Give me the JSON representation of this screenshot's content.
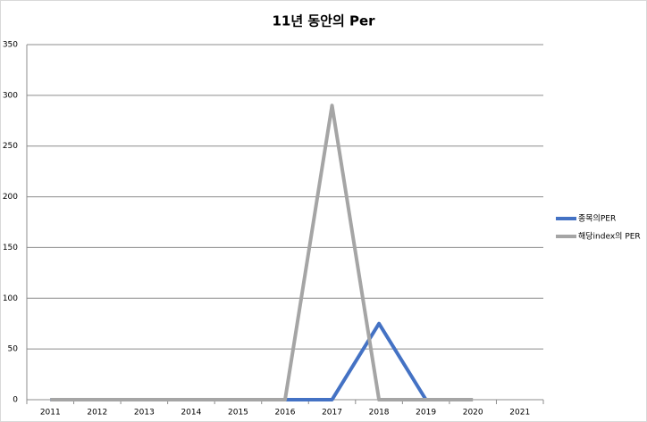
{
  "chart_data": {
    "type": "line",
    "title": "11년 동안의 Per",
    "categories": [
      "2011",
      "2012",
      "2013",
      "2014",
      "2015",
      "2016",
      "2017",
      "2018",
      "2019",
      "2020",
      "2021"
    ],
    "series": [
      {
        "name": "종목의PER",
        "color": "#4472c4",
        "values": [
          0,
          0,
          0,
          0,
          0,
          0,
          0,
          75,
          0,
          null,
          null
        ]
      },
      {
        "name": "해당index의 PER",
        "color": "#a5a5a5",
        "values": [
          0,
          0,
          0,
          0,
          0,
          0,
          290,
          0,
          0,
          0,
          null
        ]
      }
    ],
    "ylim": [
      0,
      350
    ],
    "yticks": [
      0,
      50,
      100,
      150,
      200,
      250,
      300,
      350
    ],
    "grid": true
  }
}
